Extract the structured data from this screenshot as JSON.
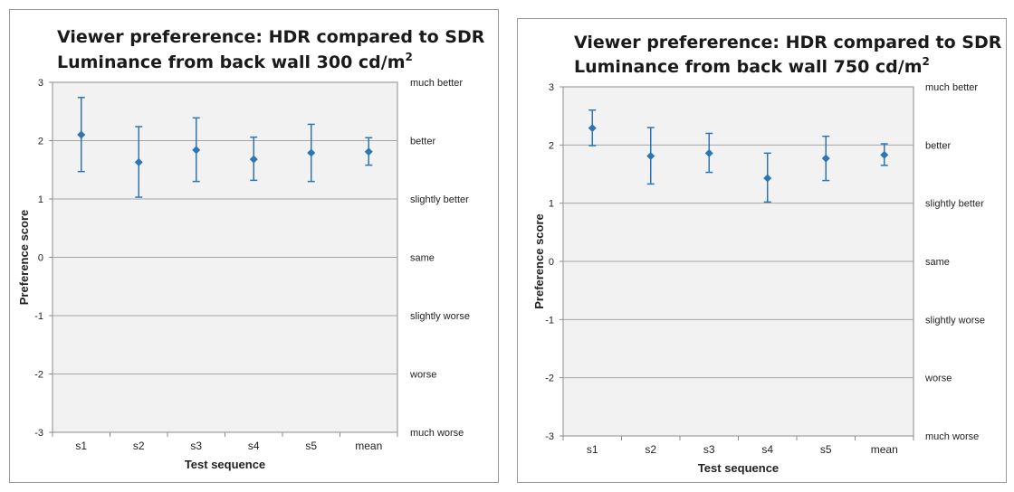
{
  "chart_data": [
    {
      "type": "scatter",
      "title_line1": "Viewer prefererence: HDR compared to SDR",
      "title_line2": "Luminance from back wall 300 cd/m",
      "title_sup": "2",
      "xlabel": "Test sequence",
      "ylabel": "Preference score",
      "ylim": [
        -3,
        3
      ],
      "yticks": [
        "3",
        "2",
        "1",
        "0",
        "-1",
        "-2",
        "-3"
      ],
      "right_labels": [
        "much better",
        "better",
        "slightly better",
        "same",
        "slightly worse",
        "worse",
        "much worse"
      ],
      "categories": [
        "s1",
        "s2",
        "s3",
        "s4",
        "s5",
        "mean"
      ],
      "series": [
        {
          "values": [
            2.1,
            1.63,
            1.84,
            1.68,
            1.79,
            1.81
          ],
          "error_low": [
            1.47,
            1.03,
            1.3,
            1.32,
            1.3,
            1.58
          ],
          "error_high": [
            2.74,
            2.24,
            2.39,
            2.06,
            2.28,
            2.05
          ]
        }
      ],
      "grid": true,
      "color": "#2e75b6",
      "plot_bg": "#f2f2f2"
    },
    {
      "type": "scatter",
      "title_line1": "Viewer prefererence: HDR compared to SDR",
      "title_line2": "Luminance from back wall 750 cd/m",
      "title_sup": "2",
      "xlabel": "Test sequence",
      "ylabel": "Preference score",
      "ylim": [
        -3,
        3
      ],
      "yticks": [
        "3",
        "2",
        "1",
        "0",
        "-1",
        "-2",
        "-3"
      ],
      "right_labels": [
        "much better",
        "better",
        "slightly better",
        "same",
        "slightly worse",
        "worse",
        "much worse"
      ],
      "categories": [
        "s1",
        "s2",
        "s3",
        "s4",
        "s5",
        "mean"
      ],
      "series": [
        {
          "values": [
            2.29,
            1.81,
            1.86,
            1.43,
            1.77,
            1.83
          ],
          "error_low": [
            1.99,
            1.33,
            1.53,
            1.02,
            1.39,
            1.65
          ],
          "error_high": [
            2.6,
            2.3,
            2.2,
            1.86,
            2.15,
            2.02
          ]
        }
      ],
      "grid": true,
      "color": "#2e75b6",
      "plot_bg": "#f2f2f2"
    }
  ]
}
